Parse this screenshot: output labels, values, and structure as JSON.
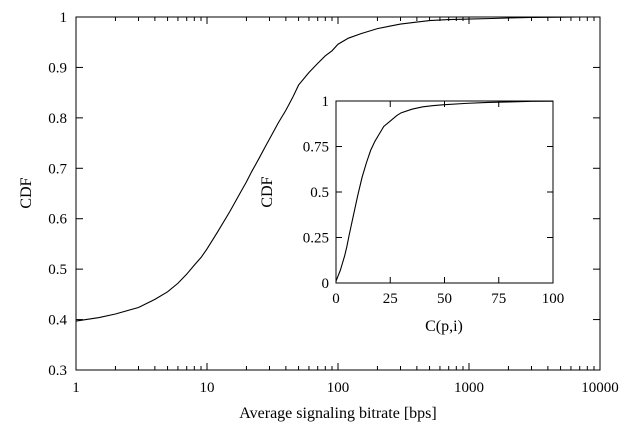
{
  "chart_data": [
    {
      "id": "main",
      "type": "line",
      "title": "",
      "xlabel": "Average signaling bitrate [bps]",
      "ylabel": "CDF",
      "xscale": "log",
      "xlim": [
        1,
        10000
      ],
      "ylim": [
        0.3,
        1.0
      ],
      "xticks": [
        1,
        10,
        100,
        1000,
        10000
      ],
      "xtick_labels": [
        "1",
        "10",
        "100",
        "1000",
        "10000"
      ],
      "yticks": [
        0.3,
        0.4,
        0.5,
        0.6,
        0.7,
        0.8,
        0.9,
        1.0
      ],
      "ytick_labels": [
        "0.3",
        "0.4",
        "0.5",
        "0.6",
        "0.7",
        "0.8",
        "0.9",
        "1"
      ],
      "grid": false,
      "legend": "none",
      "series": [
        {
          "x": [
            1,
            1.5,
            2,
            3,
            4,
            5,
            6,
            7,
            8,
            9,
            10,
            12,
            15,
            18,
            20,
            22,
            25,
            28,
            30,
            35,
            40,
            45,
            50,
            60,
            70,
            80,
            90,
            100,
            120,
            150,
            200,
            250,
            300,
            400,
            500,
            700,
            1000,
            1500,
            2000,
            3000,
            5000,
            7000,
            10000
          ],
          "y": [
            0.397,
            0.404,
            0.411,
            0.424,
            0.44,
            0.455,
            0.472,
            0.49,
            0.508,
            0.523,
            0.54,
            0.573,
            0.615,
            0.652,
            0.673,
            0.694,
            0.72,
            0.744,
            0.758,
            0.79,
            0.815,
            0.84,
            0.865,
            0.89,
            0.908,
            0.923,
            0.933,
            0.946,
            0.958,
            0.967,
            0.977,
            0.982,
            0.986,
            0.99,
            0.993,
            0.995,
            0.996,
            0.997,
            0.998,
            0.999,
            0.9995,
            1.0,
            1.0
          ]
        }
      ]
    },
    {
      "id": "inset",
      "type": "line",
      "title": "",
      "xlabel": "C(p,i)",
      "ylabel": "CDF",
      "xscale": "linear",
      "xlim": [
        0,
        100
      ],
      "ylim": [
        0,
        1
      ],
      "xticks": [
        0,
        25,
        50,
        75,
        100
      ],
      "xtick_labels": [
        "0",
        "25",
        "50",
        "75",
        "100"
      ],
      "yticks": [
        0,
        0.25,
        0.5,
        0.75,
        1
      ],
      "ytick_labels": [
        "0",
        "0.25",
        "0.5",
        "0.75",
        "1"
      ],
      "grid": false,
      "legend": "none",
      "series": [
        {
          "x": [
            0,
            1,
            2,
            3,
            4,
            5,
            6,
            8,
            10,
            12,
            14,
            16,
            18,
            20,
            22,
            25,
            28,
            30,
            35,
            40,
            45,
            50,
            60,
            70,
            80,
            90,
            100
          ],
          "y": [
            0.01,
            0.04,
            0.07,
            0.11,
            0.15,
            0.2,
            0.26,
            0.37,
            0.48,
            0.58,
            0.66,
            0.73,
            0.78,
            0.82,
            0.86,
            0.89,
            0.92,
            0.935,
            0.955,
            0.968,
            0.975,
            0.98,
            0.987,
            0.992,
            0.995,
            0.998,
            0.999
          ]
        }
      ]
    }
  ]
}
